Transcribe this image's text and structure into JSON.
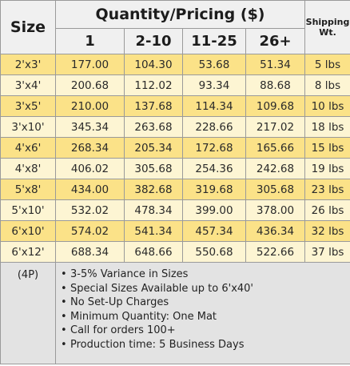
{
  "header": {
    "size_label": "Size",
    "pricing_label": "Quantity/Pricing ($)",
    "tiers": [
      "1",
      "2-10",
      "11-25",
      "26+"
    ],
    "shipping_label_line1": "Shipping",
    "shipping_label_line2": "Wt."
  },
  "rows": [
    {
      "size": "2'x3'",
      "p1": "177.00",
      "p2": "104.30",
      "p3": "53.68",
      "p4": "51.34",
      "wt": "5 lbs"
    },
    {
      "size": "3'x4'",
      "p1": "200.68",
      "p2": "112.02",
      "p3": "93.34",
      "p4": "88.68",
      "wt": "8 lbs"
    },
    {
      "size": "3'x5'",
      "p1": "210.00",
      "p2": "137.68",
      "p3": "114.34",
      "p4": "109.68",
      "wt": "10 lbs"
    },
    {
      "size": "3'x10'",
      "p1": "345.34",
      "p2": "263.68",
      "p3": "228.66",
      "p4": "217.02",
      "wt": "18 lbs"
    },
    {
      "size": "4'x6'",
      "p1": "268.34",
      "p2": "205.34",
      "p3": "172.68",
      "p4": "165.66",
      "wt": "15 lbs"
    },
    {
      "size": "4'x8'",
      "p1": "406.02",
      "p2": "305.68",
      "p3": "254.36",
      "p4": "242.68",
      "wt": "19 lbs"
    },
    {
      "size": "5'x8'",
      "p1": "434.00",
      "p2": "382.68",
      "p3": "319.68",
      "p4": "305.68",
      "wt": "23 lbs"
    },
    {
      "size": "5'x10'",
      "p1": "532.02",
      "p2": "478.34",
      "p3": "399.00",
      "p4": "378.00",
      "wt": "26 lbs"
    },
    {
      "size": "6'x10'",
      "p1": "574.02",
      "p2": "541.34",
      "p3": "457.34",
      "p4": "436.34",
      "wt": "32 lbs"
    },
    {
      "size": "6'x12'",
      "p1": "688.34",
      "p2": "648.66",
      "p3": "550.68",
      "p4": "522.66",
      "wt": "37 lbs"
    }
  ],
  "footer": {
    "code": "(4P)",
    "notes": [
      "3-5% Variance in Sizes",
      "Special Sizes Available up to 6'x40'",
      "No Set-Up Charges",
      "Minimum Quantity: One Mat",
      "Call for orders 100+",
      "Production time:  5 Business Days"
    ]
  },
  "colors": {
    "row_dark": "#fbe288",
    "row_light": "#fdf5d3",
    "header_bg": "#f0f0f0",
    "notes_bg": "#e3e3e3"
  }
}
